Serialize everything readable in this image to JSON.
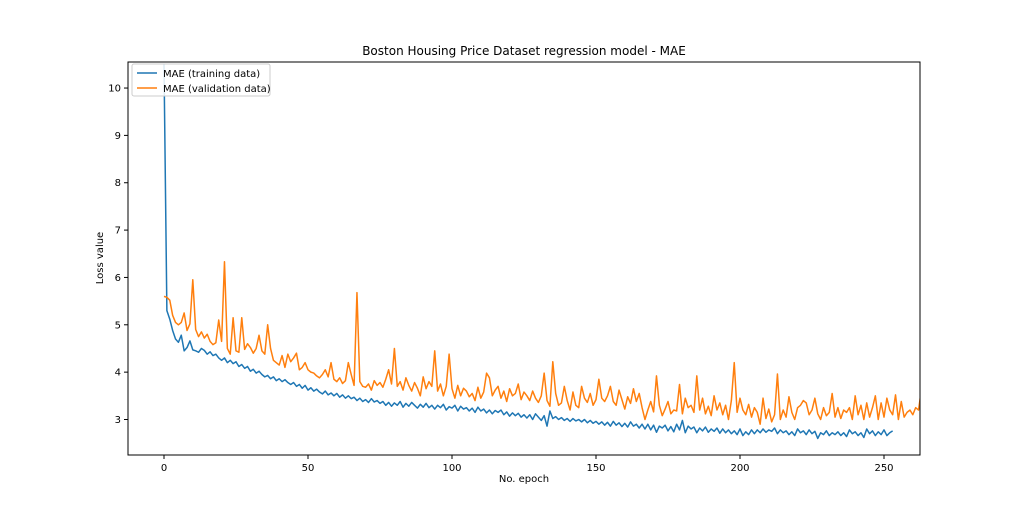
{
  "chart_data": {
    "type": "line",
    "title": "Boston Housing Price Dataset regression model - MAE",
    "xlabel": "No. epoch",
    "ylabel": "Loss value",
    "xlim": [
      -12.5,
      262.5
    ],
    "ylim": [
      2.25,
      10.55
    ],
    "xticks": [
      0,
      50,
      100,
      150,
      200,
      250
    ],
    "yticks": [
      3,
      4,
      5,
      6,
      7,
      8,
      9,
      10
    ],
    "grid": false,
    "legend_position": "top-left",
    "series": [
      {
        "name": "MAE (training data)",
        "color": "#1f77b4",
        "x_start": 0,
        "values": [
          10.5,
          5.3,
          5.12,
          4.88,
          4.7,
          4.63,
          4.78,
          4.45,
          4.52,
          4.66,
          4.47,
          4.45,
          4.42,
          4.5,
          4.46,
          4.38,
          4.43,
          4.35,
          4.38,
          4.3,
          4.25,
          4.3,
          4.2,
          4.25,
          4.18,
          4.22,
          4.12,
          4.16,
          4.08,
          4.12,
          4.02,
          4.06,
          3.98,
          4.02,
          3.95,
          3.9,
          3.93,
          3.86,
          3.9,
          3.82,
          3.86,
          3.8,
          3.84,
          3.78,
          3.74,
          3.78,
          3.7,
          3.74,
          3.66,
          3.72,
          3.62,
          3.67,
          3.6,
          3.64,
          3.58,
          3.54,
          3.6,
          3.52,
          3.56,
          3.5,
          3.55,
          3.47,
          3.52,
          3.45,
          3.5,
          3.44,
          3.47,
          3.4,
          3.45,
          3.38,
          3.42,
          3.36,
          3.44,
          3.37,
          3.4,
          3.34,
          3.38,
          3.3,
          3.36,
          3.28,
          3.35,
          3.3,
          3.38,
          3.26,
          3.34,
          3.28,
          3.36,
          3.3,
          3.24,
          3.32,
          3.26,
          3.34,
          3.25,
          3.3,
          3.22,
          3.3,
          3.25,
          3.32,
          3.2,
          3.27,
          3.24,
          3.3,
          3.18,
          3.28,
          3.22,
          3.25,
          3.18,
          3.24,
          3.15,
          3.26,
          3.18,
          3.22,
          3.14,
          3.2,
          3.12,
          3.19,
          3.15,
          3.2,
          3.1,
          3.16,
          3.07,
          3.14,
          3.08,
          3.13,
          3.05,
          3.1,
          3.03,
          3.1,
          3.0,
          3.12,
          3.05,
          2.98,
          3.08,
          2.86,
          3.18,
          3.02,
          3.06,
          3.0,
          3.04,
          2.98,
          3.02,
          2.96,
          3.02,
          2.97,
          3.0,
          2.95,
          3.0,
          2.93,
          2.98,
          2.92,
          2.96,
          2.9,
          2.95,
          2.88,
          2.94,
          2.86,
          2.96,
          2.88,
          2.93,
          2.85,
          2.92,
          2.84,
          2.95,
          2.86,
          2.9,
          2.82,
          2.9,
          2.8,
          2.9,
          2.78,
          2.88,
          2.73,
          2.86,
          2.82,
          2.88,
          2.76,
          2.85,
          2.74,
          2.9,
          2.78,
          2.98,
          2.72,
          2.86,
          2.8,
          2.84,
          2.72,
          2.82,
          2.76,
          2.84,
          2.73,
          2.8,
          2.75,
          2.82,
          2.71,
          2.8,
          2.72,
          2.78,
          2.7,
          2.76,
          2.68,
          2.8,
          2.66,
          2.74,
          2.68,
          2.78,
          2.7,
          2.78,
          2.72,
          2.8,
          2.73,
          2.78,
          2.75,
          2.82,
          2.7,
          2.78,
          2.72,
          2.76,
          2.68,
          2.74,
          2.66,
          2.8,
          2.72,
          2.76,
          2.68,
          2.78,
          2.7,
          2.75,
          2.6,
          2.72,
          2.68,
          2.76,
          2.66,
          2.72,
          2.68,
          2.74,
          2.66,
          2.72,
          2.64,
          2.78,
          2.7,
          2.74,
          2.66,
          2.72,
          2.62,
          2.8,
          2.7,
          2.76,
          2.66,
          2.74,
          2.68,
          2.78,
          2.66,
          2.72,
          2.76
        ]
      },
      {
        "name": "MAE (validation data)",
        "color": "#ff7f0e",
        "x_start": 0,
        "values": [
          5.6,
          5.58,
          5.52,
          5.2,
          5.05,
          5.0,
          5.05,
          5.25,
          4.88,
          5.02,
          5.95,
          4.9,
          4.75,
          4.85,
          4.72,
          4.8,
          4.65,
          4.58,
          4.62,
          5.1,
          4.65,
          6.33,
          4.5,
          4.38,
          5.15,
          4.45,
          4.42,
          5.15,
          4.48,
          4.6,
          4.52,
          4.4,
          4.5,
          4.78,
          4.45,
          4.38,
          5.0,
          4.5,
          4.25,
          4.2,
          4.15,
          4.35,
          4.1,
          4.38,
          4.22,
          4.3,
          4.4,
          4.05,
          4.1,
          4.2,
          4.05,
          4.0,
          3.98,
          3.92,
          3.88,
          3.95,
          4.05,
          3.9,
          4.2,
          3.85,
          3.8,
          3.88,
          3.76,
          3.82,
          4.2,
          3.95,
          3.72,
          5.68,
          3.8,
          3.7,
          3.68,
          3.75,
          3.62,
          3.82,
          3.72,
          3.78,
          3.68,
          3.85,
          4.05,
          3.75,
          4.5,
          3.7,
          3.8,
          3.62,
          3.88,
          3.72,
          3.6,
          3.78,
          3.66,
          3.5,
          3.9,
          3.65,
          3.8,
          3.7,
          4.45,
          3.6,
          3.75,
          3.5,
          3.7,
          4.38,
          3.65,
          3.45,
          3.72,
          3.5,
          3.66,
          3.6,
          3.48,
          3.55,
          3.4,
          3.68,
          3.45,
          3.58,
          3.98,
          3.88,
          3.5,
          3.62,
          3.7,
          3.45,
          3.6,
          3.38,
          3.65,
          3.5,
          3.55,
          3.75,
          3.42,
          3.58,
          3.5,
          3.4,
          3.6,
          3.45,
          3.36,
          3.5,
          3.98,
          3.4,
          3.28,
          4.22,
          3.55,
          3.3,
          3.35,
          3.7,
          3.4,
          3.2,
          3.58,
          3.3,
          3.25,
          3.7,
          3.45,
          3.36,
          3.55,
          3.3,
          3.42,
          3.85,
          3.45,
          3.38,
          3.5,
          3.7,
          3.38,
          3.3,
          3.62,
          3.42,
          3.22,
          3.48,
          3.34,
          3.65,
          3.38,
          3.55,
          3.25,
          3.0,
          3.2,
          3.38,
          3.16,
          3.92,
          3.3,
          3.08,
          3.22,
          3.38,
          3.12,
          3.2,
          3.18,
          3.74,
          3.12,
          3.45,
          3.25,
          3.3,
          3.15,
          3.92,
          3.2,
          3.45,
          3.12,
          3.28,
          3.08,
          3.5,
          3.2,
          3.35,
          3.1,
          3.3,
          3.0,
          3.4,
          4.2,
          3.15,
          3.45,
          3.2,
          3.1,
          3.32,
          3.05,
          3.25,
          3.15,
          2.9,
          3.45,
          3.02,
          3.22,
          2.95,
          3.1,
          3.96,
          3.0,
          3.2,
          3.05,
          3.48,
          3.15,
          3.0,
          3.25,
          3.3,
          3.4,
          3.35,
          3.1,
          3.2,
          3.45,
          3.12,
          3.0,
          3.25,
          3.08,
          3.15,
          3.55,
          3.05,
          3.25,
          3.02,
          3.2,
          3.15,
          3.25,
          3.0,
          3.5,
          3.1,
          3.3,
          3.0,
          3.35,
          3.05,
          3.25,
          3.5,
          3.0,
          3.35,
          3.05,
          3.45,
          3.2,
          3.1,
          3.52,
          3.0,
          3.38,
          3.05,
          3.15,
          3.2,
          3.1,
          3.25,
          3.2,
          3.64,
          3.05
        ]
      }
    ]
  }
}
